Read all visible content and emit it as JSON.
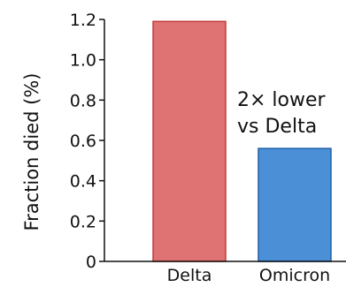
{
  "chart_data": {
    "type": "bar",
    "categories": [
      "Delta",
      "Omicron"
    ],
    "values": [
      1.19,
      0.56
    ],
    "ylabel": "Fraction died (%)",
    "ylim": [
      0,
      1.2
    ],
    "yticks": [
      0,
      0.2,
      0.4,
      0.6,
      0.8,
      1.0,
      1.2
    ],
    "ytick_labels": [
      "0",
      "0.2",
      "0.4",
      "0.6",
      "0.8",
      "1.0",
      "1.2"
    ],
    "bar_colors": [
      "#df7272",
      "#4b8fd6"
    ],
    "bar_edge_colors": [
      "#c43a3a",
      "#1f5fa8"
    ],
    "annotation": {
      "lines": [
        "2× lower",
        "vs Delta"
      ],
      "target": "Omicron"
    },
    "grid": false,
    "legend": "none"
  }
}
